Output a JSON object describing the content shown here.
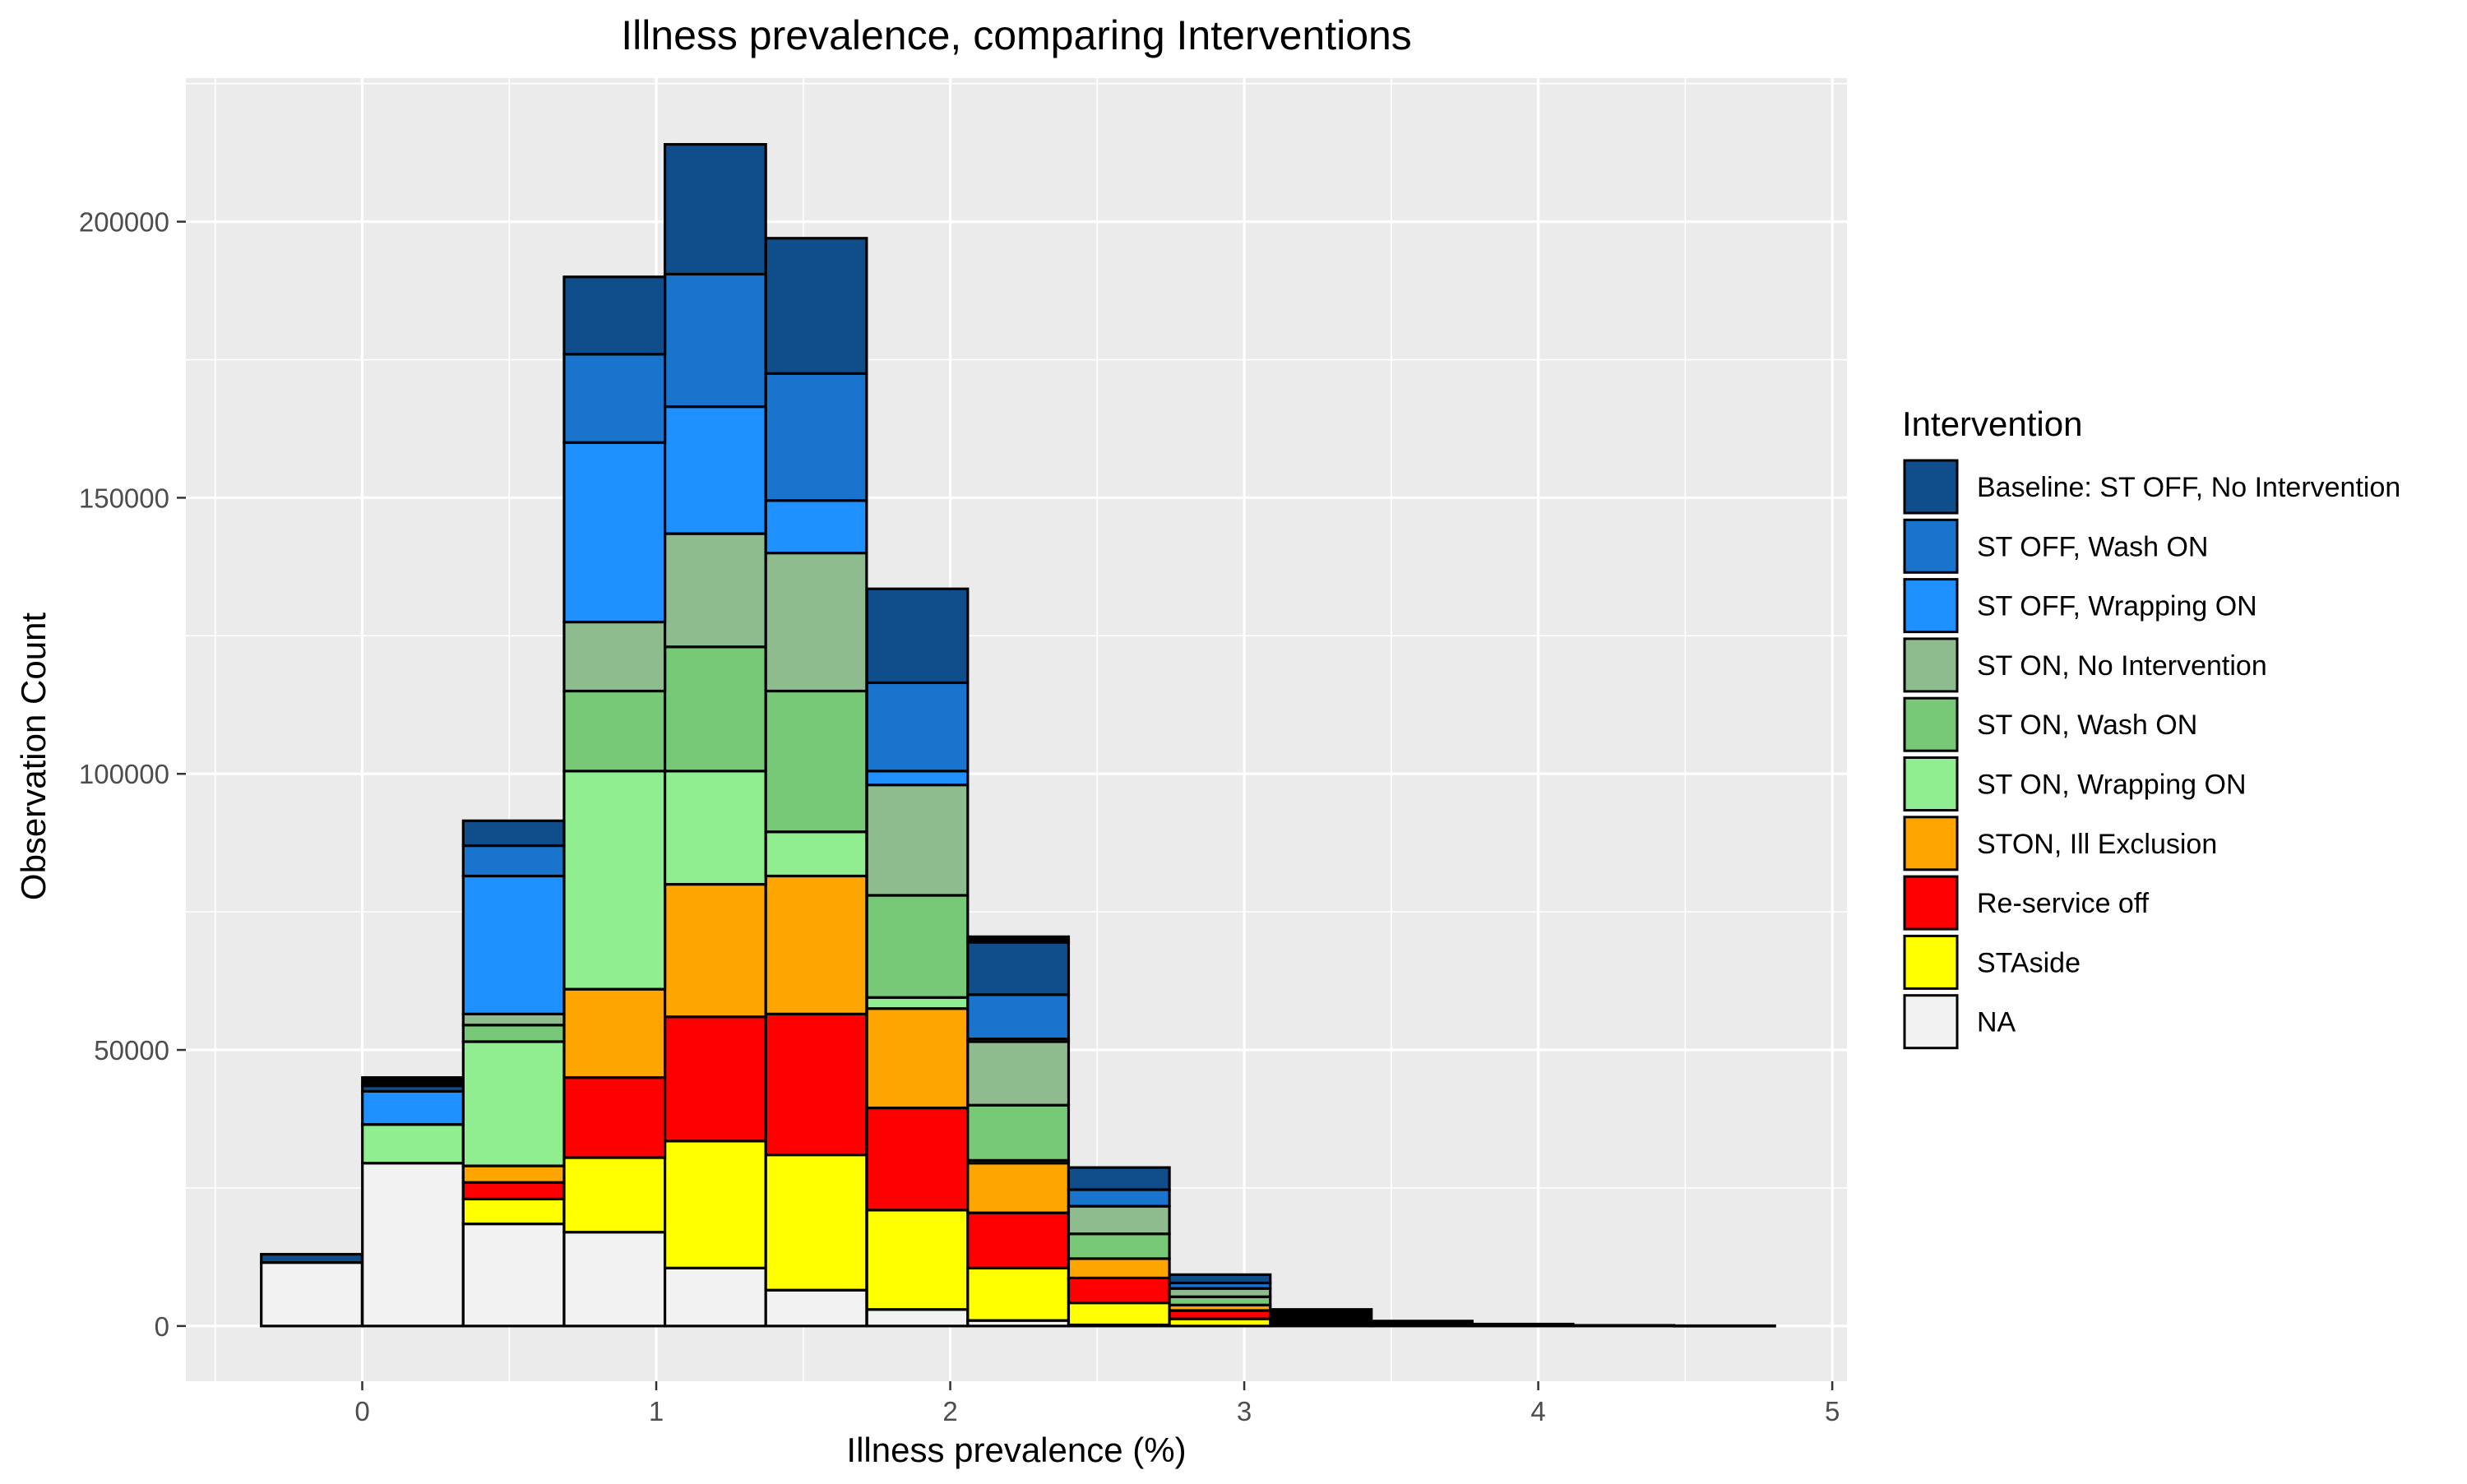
{
  "chart_data": {
    "type": "bar",
    "stacked": true,
    "title": "Illness prevalence, comparing Interventions",
    "xlabel": "Illness prevalence (%)",
    "ylabel": "Observation Count",
    "xlim": [
      -0.6,
      5.05
    ],
    "ylim": [
      -10000,
      226000
    ],
    "x_ticks": [
      0,
      1,
      2,
      3,
      4,
      5
    ],
    "x_tick_labels": [
      "0",
      "1",
      "2",
      "3",
      "4",
      "5"
    ],
    "y_ticks": [
      0,
      50000,
      100000,
      150000,
      200000
    ],
    "y_tick_labels": [
      "0",
      "50000",
      "100000",
      "150000",
      "200000"
    ],
    "grid": true,
    "legend_position": "right",
    "legend_title": "Intervention",
    "bin_width": 0.343,
    "x": [
      -0.172,
      0.172,
      0.515,
      0.858,
      1.201,
      1.544,
      1.888,
      2.231,
      2.574,
      2.917,
      3.261,
      3.604,
      3.947,
      4.29,
      4.633
    ],
    "series": [
      {
        "name": "NA",
        "color": "#f2f2f2",
        "values": [
          11500,
          29500,
          18500,
          17000,
          10500,
          6500,
          3000,
          1000,
          200,
          0,
          0,
          0,
          0,
          0,
          0
        ]
      },
      {
        "name": "STAside",
        "color": "#ffff00",
        "values": [
          0,
          0,
          4500,
          13500,
          23000,
          24500,
          18000,
          9500,
          4000,
          1300,
          0,
          0,
          0,
          0,
          0
        ]
      },
      {
        "name": "Re-service off",
        "color": "#ff0000",
        "values": [
          0,
          0,
          3000,
          14500,
          22500,
          25500,
          18500,
          10000,
          4500,
          1500,
          0,
          0,
          0,
          0,
          0
        ]
      },
      {
        "name": "STON, Ill Exclusion",
        "color": "#ffa500",
        "values": [
          0,
          0,
          3000,
          16000,
          24000,
          25000,
          18000,
          9000,
          3500,
          1000,
          0,
          0,
          0,
          0,
          0
        ]
      },
      {
        "name": "ST ON, Wrapping ON",
        "color": "#90ee90",
        "values": [
          0,
          7000,
          22500,
          39500,
          20500,
          8000,
          2000,
          500,
          0,
          0,
          0,
          0,
          0,
          0,
          0
        ]
      },
      {
        "name": "ST ON, Wash ON",
        "color": "#77c977",
        "values": [
          0,
          0,
          3000,
          14500,
          22500,
          25500,
          18500,
          10000,
          4500,
          1500,
          0,
          0,
          0,
          0,
          0
        ]
      },
      {
        "name": "ST ON, No Intervention",
        "color": "#8fbc8f",
        "values": [
          0,
          0,
          2000,
          12500,
          20500,
          25000,
          20000,
          11500,
          5000,
          1500,
          0,
          0,
          0,
          0,
          0
        ]
      },
      {
        "name": "ST OFF, Wrapping ON",
        "color": "#1e90ff",
        "values": [
          0,
          6000,
          25000,
          32500,
          23000,
          9500,
          2500,
          500,
          0,
          0,
          0,
          0,
          0,
          0,
          0
        ]
      },
      {
        "name": "ST OFF, Wash ON",
        "color": "#1874cd",
        "values": [
          0,
          0,
          5500,
          16000,
          24000,
          23000,
          16000,
          8000,
          3000,
          1000,
          0,
          0,
          0,
          0,
          0
        ]
      },
      {
        "name": "Baseline: ST OFF, No Intervention",
        "color": "#104e8b",
        "values": [
          1500,
          1000,
          4500,
          14000,
          23500,
          24500,
          17000,
          9500,
          4000,
          1500,
          0,
          0,
          0,
          0,
          0
        ]
      },
      {
        "name": "Black",
        "color": "#000000",
        "values": [
          0,
          1500,
          0,
          0,
          0,
          0,
          0,
          1000,
          0,
          0,
          3000,
          900,
          350,
          120,
          50
        ]
      }
    ]
  }
}
